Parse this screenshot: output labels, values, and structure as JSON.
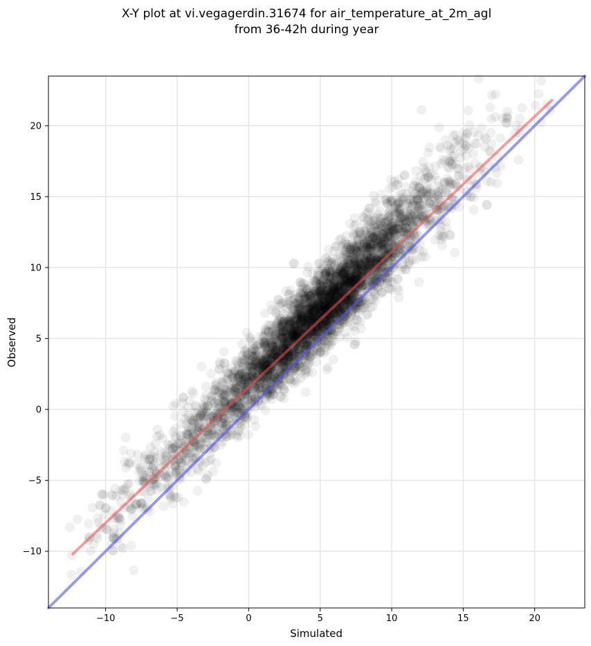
{
  "chart_data": {
    "type": "scatter",
    "title": "X-Y plot at vi.vegagerdin.31674 for air_temperature_at_2m_agl",
    "subtitle": "from 36-42h during year",
    "xlabel": "Simulated",
    "ylabel": "Observed",
    "xlim": [
      -14.0,
      23.5
    ],
    "ylim": [
      -14.0,
      23.5
    ],
    "xticks": [
      -10,
      -5,
      0,
      5,
      10,
      15,
      20
    ],
    "yticks": [
      -10,
      -5,
      0,
      5,
      10,
      15,
      20
    ],
    "xtick_labels": [
      "−10",
      "−5",
      "0",
      "5",
      "10",
      "15",
      "20"
    ],
    "ytick_labels": [
      "−10",
      "−5",
      "0",
      "5",
      "10",
      "15",
      "20"
    ],
    "grid": true,
    "point_color": "#000000",
    "point_alpha": 0.06,
    "point_count_approx": 4500,
    "scatter_trend": {
      "slope": 1.0,
      "intercept": 1.9,
      "spread_sd": 1.6,
      "x_range": [
        -12.5,
        21.5
      ]
    },
    "regression_line": {
      "color": "#e8504f",
      "x": [
        -12.3,
        21.2
      ],
      "y": [
        -10.2,
        21.8
      ]
    },
    "identity_line": {
      "color": "#5555e8",
      "x": [
        -14.0,
        23.5
      ],
      "y": [
        -14.0,
        23.5
      ]
    }
  }
}
